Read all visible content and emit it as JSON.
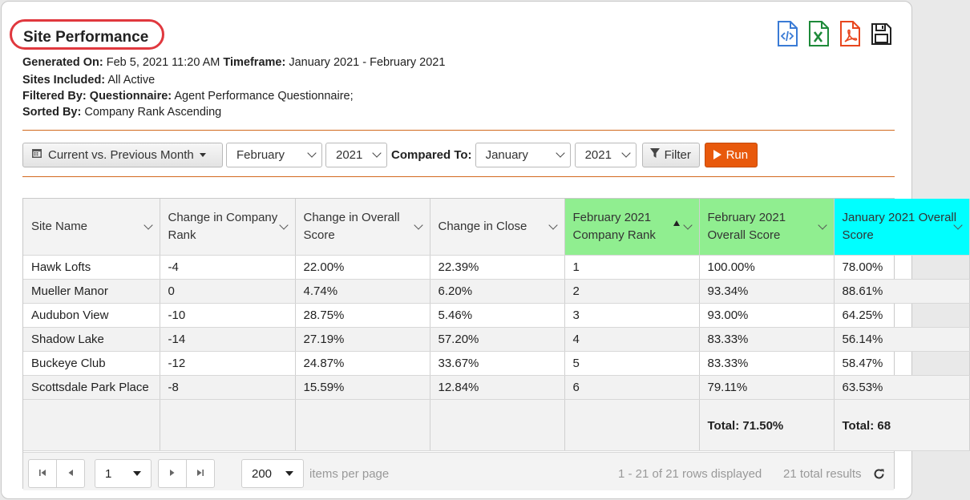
{
  "report": {
    "title": "Site Performance",
    "generated_label": "Generated On:",
    "generated_value": "Feb 5, 2021 11:20 AM",
    "timeframe_label": "Timeframe:",
    "timeframe_value": "January 2021 - February 2021",
    "sites_label": "Sites Included:",
    "sites_value": "All Active",
    "filtered_label": "Filtered By:",
    "filtered_key": "Questionnaire:",
    "filtered_value": "Agent Performance Questionnaire;",
    "sorted_label": "Sorted By:",
    "sorted_value": "Company Rank Ascending"
  },
  "export_icons": [
    "code-file-icon",
    "excel-file-icon",
    "pdf-file-icon",
    "save-disk-icon"
  ],
  "colors": {
    "accent": "#e0383e",
    "run": "#e8590c",
    "green_col": "#90ee90",
    "cyan_col": "#00ffff",
    "divider": "#d2691e"
  },
  "toolbar": {
    "range_label": "Current vs. Previous Month",
    "month": "February",
    "year": "2021",
    "compared_label": "Compared To:",
    "compare_month": "January",
    "compare_year": "2021",
    "filter_label": "Filter",
    "run_label": "Run"
  },
  "table": {
    "headers": {
      "site": "Site Name",
      "rank_change": "Change in Company Rank",
      "score_change": "Change in Overall Score",
      "close_change": "Change in Close",
      "feb_rank": "February 2021 Company Rank",
      "feb_score": "February 2021 Overall Score",
      "jan_score": "January 2021 Overall Score"
    },
    "rows": [
      {
        "site": "Hawk Lofts",
        "rank_change": "-4",
        "score_change": "22.00%",
        "close_change": "22.39%",
        "feb_rank": "1",
        "feb_score": "100.00%",
        "jan_score": "78.00%"
      },
      {
        "site": "Mueller Manor",
        "rank_change": "0",
        "score_change": "4.74%",
        "close_change": "6.20%",
        "feb_rank": "2",
        "feb_score": "93.34%",
        "jan_score": "88.61%"
      },
      {
        "site": "Audubon View",
        "rank_change": "-10",
        "score_change": "28.75%",
        "close_change": "5.46%",
        "feb_rank": "3",
        "feb_score": "93.00%",
        "jan_score": "64.25%"
      },
      {
        "site": "Shadow Lake",
        "rank_change": "-14",
        "score_change": "27.19%",
        "close_change": "57.20%",
        "feb_rank": "4",
        "feb_score": "83.33%",
        "jan_score": "56.14%"
      },
      {
        "site": "Buckeye Club",
        "rank_change": "-12",
        "score_change": "24.87%",
        "close_change": "33.67%",
        "feb_rank": "5",
        "feb_score": "83.33%",
        "jan_score": "58.47%"
      },
      {
        "site": "Scottsdale Park Place",
        "rank_change": "-8",
        "score_change": "15.59%",
        "close_change": "12.84%",
        "feb_rank": "6",
        "feb_score": "79.11%",
        "jan_score": "63.53%"
      }
    ],
    "footer": {
      "feb_score_total": "Total: 71.50%",
      "jan_score_total": "Total: 68"
    }
  },
  "pager": {
    "page": "1",
    "per_page": "200",
    "per_page_label": "items per page",
    "rows_displayed": "1 - 21 of 21 rows displayed",
    "total_results": "21 total results"
  }
}
